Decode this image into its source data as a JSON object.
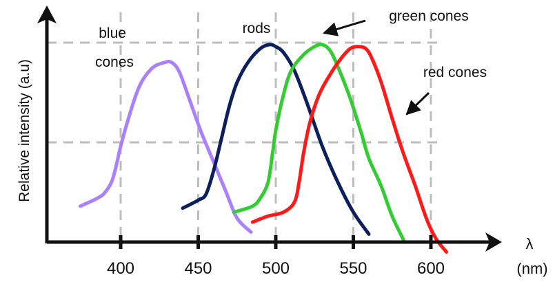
{
  "chart_data": {
    "type": "line",
    "title": "",
    "xlabel_symbol": "λ",
    "xlabel_unit": "(nm)",
    "ylabel": "Relative intensity (a.u)",
    "xlim": [
      350,
      635
    ],
    "ylim": [
      0,
      1
    ],
    "x_ticks": [
      400,
      450,
      500,
      550,
      600
    ],
    "y_grid": [
      0.5,
      1.0
    ],
    "grid": true,
    "series": [
      {
        "name": "blue cones",
        "color": "#aa80ff",
        "points": [
          [
            374,
            0.18
          ],
          [
            385,
            0.22
          ],
          [
            390,
            0.25
          ],
          [
            395,
            0.32
          ],
          [
            400,
            0.48
          ],
          [
            405,
            0.62
          ],
          [
            412,
            0.78
          ],
          [
            420,
            0.87
          ],
          [
            428,
            0.9
          ],
          [
            433,
            0.9
          ],
          [
            438,
            0.85
          ],
          [
            445,
            0.7
          ],
          [
            452,
            0.55
          ],
          [
            460,
            0.4
          ],
          [
            468,
            0.25
          ],
          [
            475,
            0.12
          ],
          [
            484,
            0.05
          ]
        ]
      },
      {
        "name": "rods",
        "color": "#0d1f5c",
        "points": [
          [
            440,
            0.17
          ],
          [
            450,
            0.21
          ],
          [
            455,
            0.24
          ],
          [
            460,
            0.36
          ],
          [
            465,
            0.52
          ],
          [
            470,
            0.68
          ],
          [
            475,
            0.8
          ],
          [
            482,
            0.9
          ],
          [
            490,
            0.97
          ],
          [
            496,
            0.99
          ],
          [
            500,
            0.98
          ],
          [
            505,
            0.95
          ],
          [
            512,
            0.86
          ],
          [
            520,
            0.7
          ],
          [
            530,
            0.48
          ],
          [
            540,
            0.3
          ],
          [
            550,
            0.15
          ],
          [
            560,
            0.04
          ]
        ]
      },
      {
        "name": "green cones",
        "color": "#33cc33",
        "points": [
          [
            473,
            0.15
          ],
          [
            485,
            0.18
          ],
          [
            490,
            0.22
          ],
          [
            495,
            0.3
          ],
          [
            498,
            0.45
          ],
          [
            500,
            0.56
          ],
          [
            505,
            0.74
          ],
          [
            510,
            0.86
          ],
          [
            518,
            0.94
          ],
          [
            525,
            0.98
          ],
          [
            530,
            0.99
          ],
          [
            535,
            0.96
          ],
          [
            540,
            0.88
          ],
          [
            548,
            0.72
          ],
          [
            555,
            0.55
          ],
          [
            560,
            0.42
          ],
          [
            568,
            0.28
          ],
          [
            575,
            0.13
          ],
          [
            583,
            0.0
          ]
        ]
      },
      {
        "name": "red cones",
        "color": "#ff1a1a",
        "points": [
          [
            485,
            0.1
          ],
          [
            495,
            0.13
          ],
          [
            505,
            0.15
          ],
          [
            512,
            0.2
          ],
          [
            515,
            0.3
          ],
          [
            518,
            0.45
          ],
          [
            522,
            0.6
          ],
          [
            528,
            0.74
          ],
          [
            535,
            0.84
          ],
          [
            542,
            0.92
          ],
          [
            548,
            0.97
          ],
          [
            553,
            0.98
          ],
          [
            558,
            0.97
          ],
          [
            562,
            0.92
          ],
          [
            568,
            0.8
          ],
          [
            575,
            0.62
          ],
          [
            582,
            0.45
          ],
          [
            590,
            0.28
          ],
          [
            597,
            0.12
          ],
          [
            603,
            0.02
          ],
          [
            610,
            -0.05
          ]
        ]
      }
    ],
    "annotations": [
      {
        "lines": [
          "blue",
          "cones"
        ],
        "series": "blue cones"
      },
      {
        "lines": [
          "rods"
        ],
        "series": "rods"
      },
      {
        "lines": [
          "green cones"
        ],
        "series": "green cones"
      },
      {
        "lines": [
          "red cones"
        ],
        "series": "red cones"
      }
    ]
  }
}
